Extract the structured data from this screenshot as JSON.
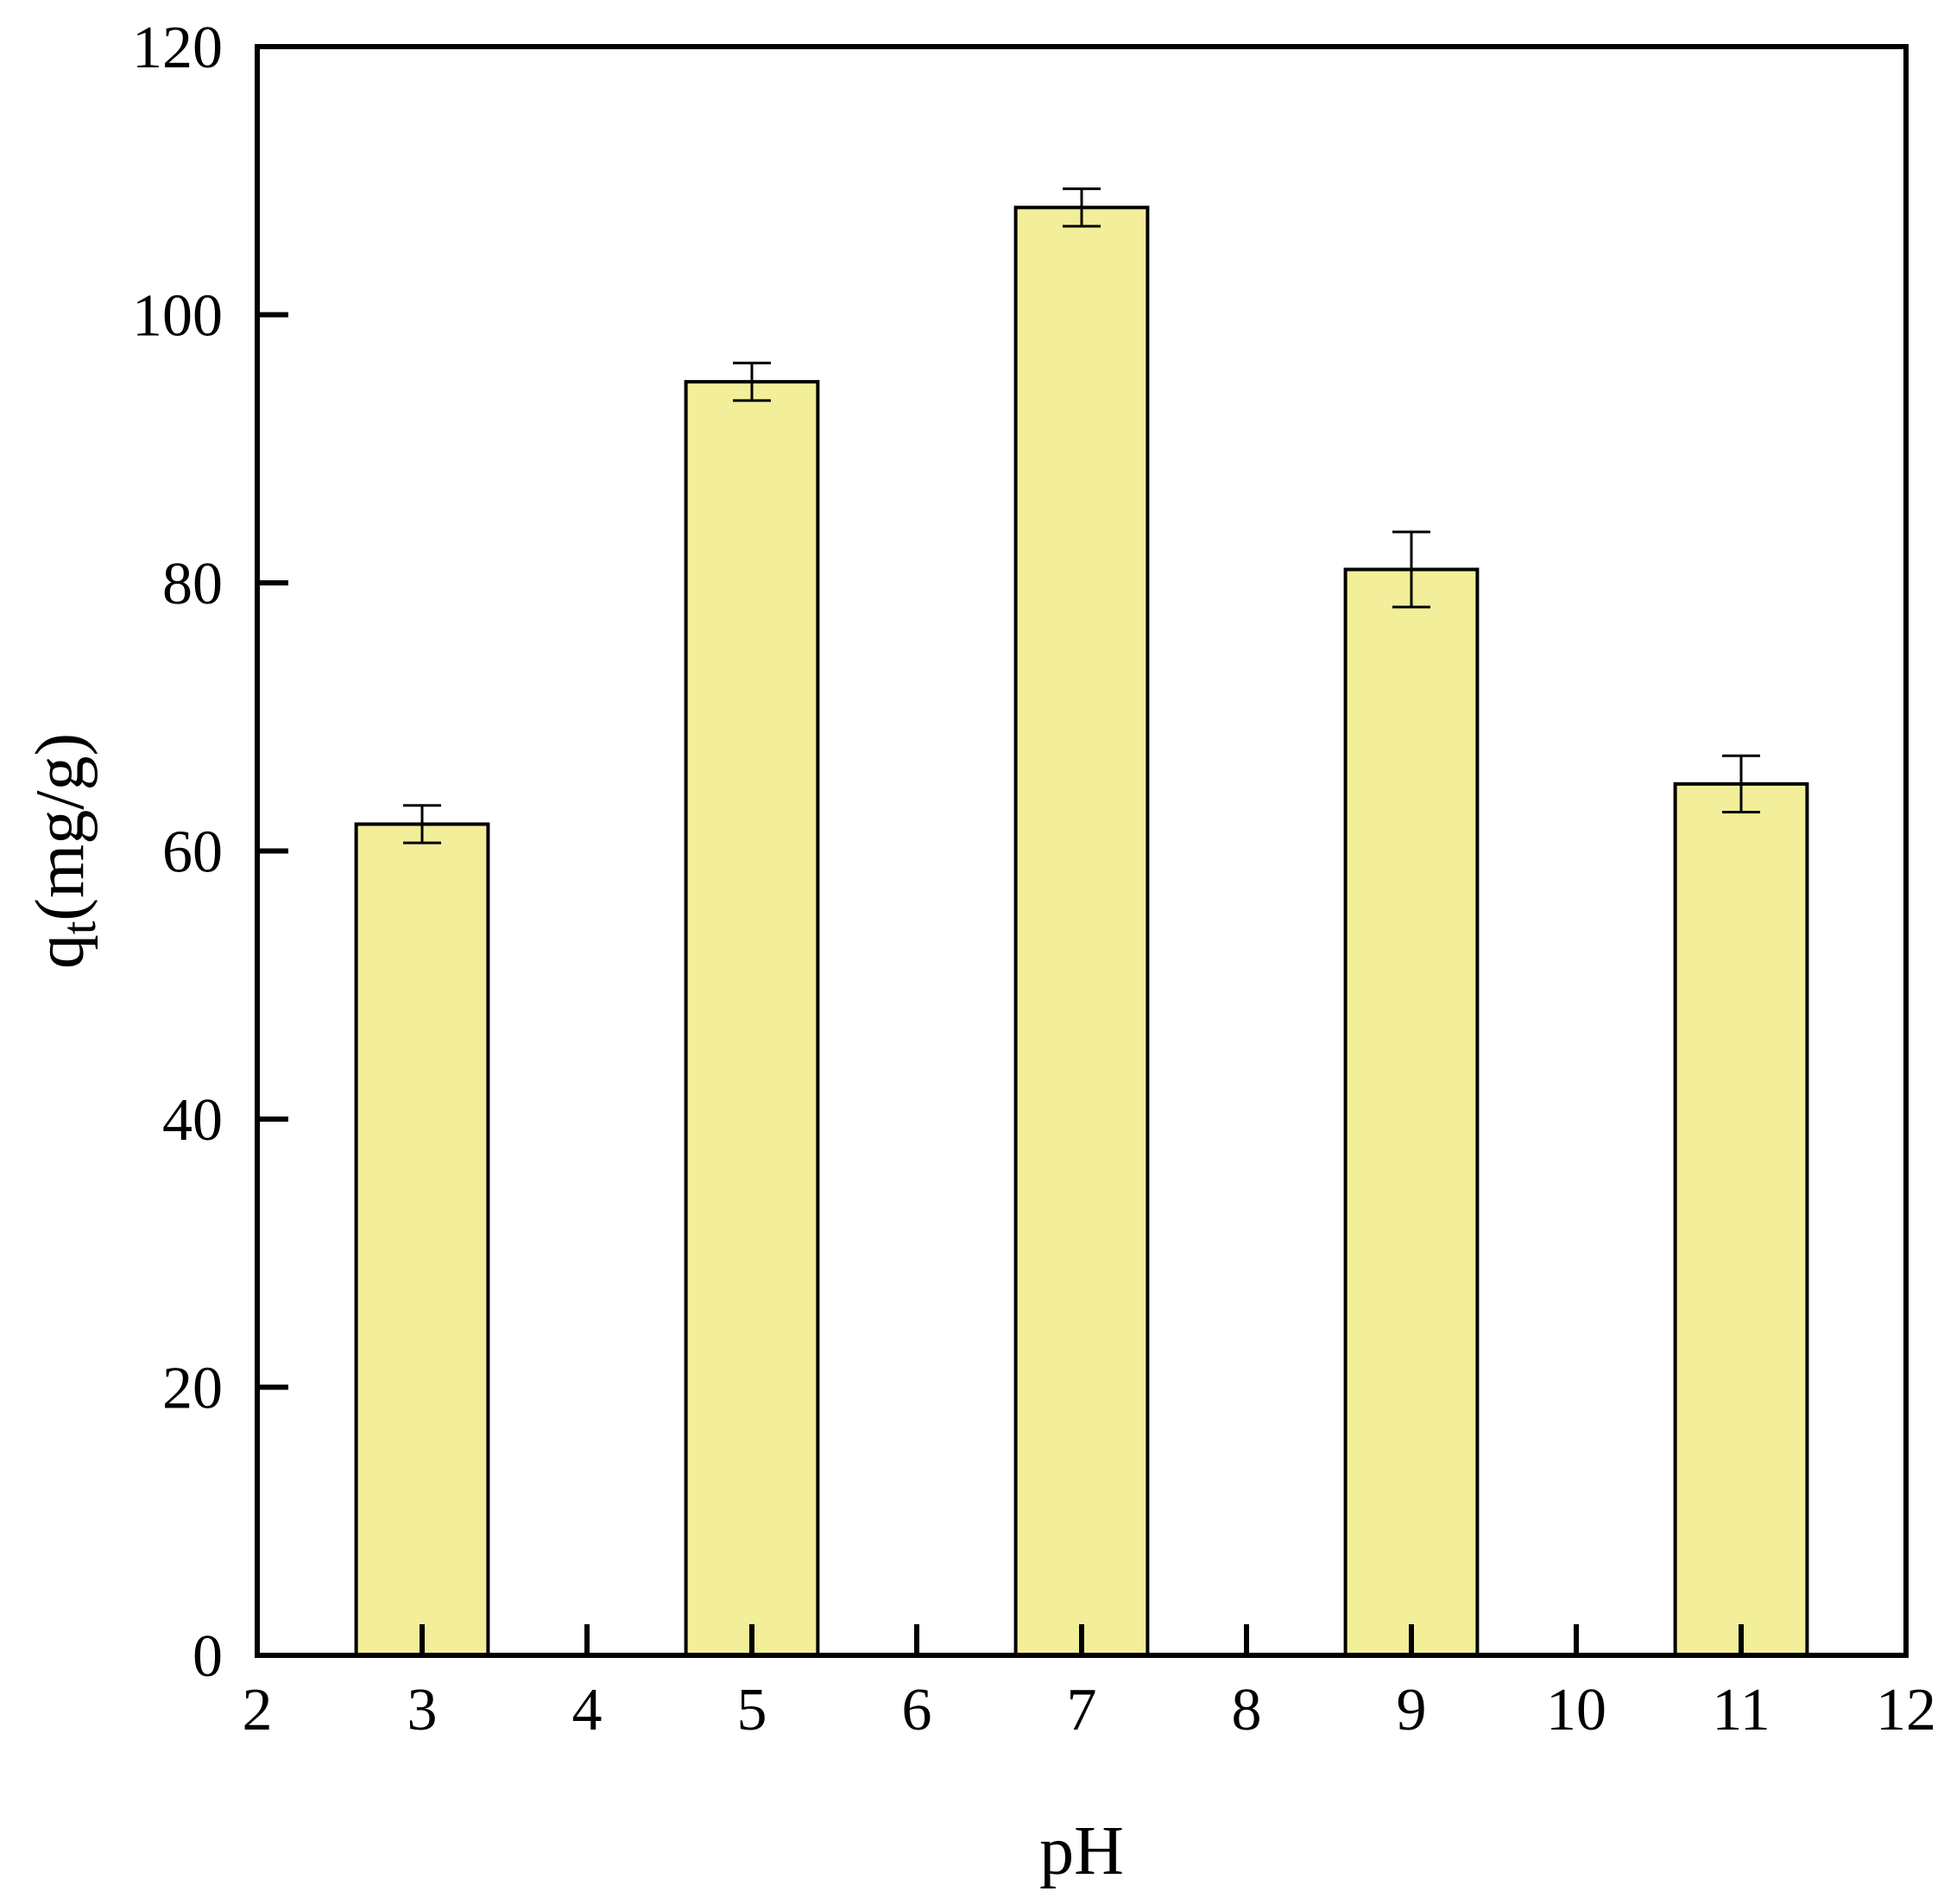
{
  "chart_data": {
    "type": "bar",
    "xlabel": "pH",
    "ylabel": {
      "main": "q",
      "subscript": "t",
      "unit": "(mg/g)"
    },
    "xlim": [
      2,
      12
    ],
    "ylim": [
      0,
      120
    ],
    "x_ticks": [
      2,
      3,
      4,
      5,
      6,
      7,
      8,
      9,
      10,
      11,
      12
    ],
    "y_ticks": [
      0,
      20,
      40,
      60,
      80,
      100,
      120
    ],
    "bar_width": 0.8,
    "bar_color": "#f2ee99",
    "grid": false,
    "legend": "none",
    "bars": [
      {
        "x": 3,
        "value": 62,
        "error": 1.4
      },
      {
        "x": 5,
        "value": 95,
        "error": 1.4
      },
      {
        "x": 7,
        "value": 108,
        "error": 1.4
      },
      {
        "x": 9,
        "value": 81,
        "error": 2.8
      },
      {
        "x": 11,
        "value": 65,
        "error": 2.1
      }
    ]
  }
}
